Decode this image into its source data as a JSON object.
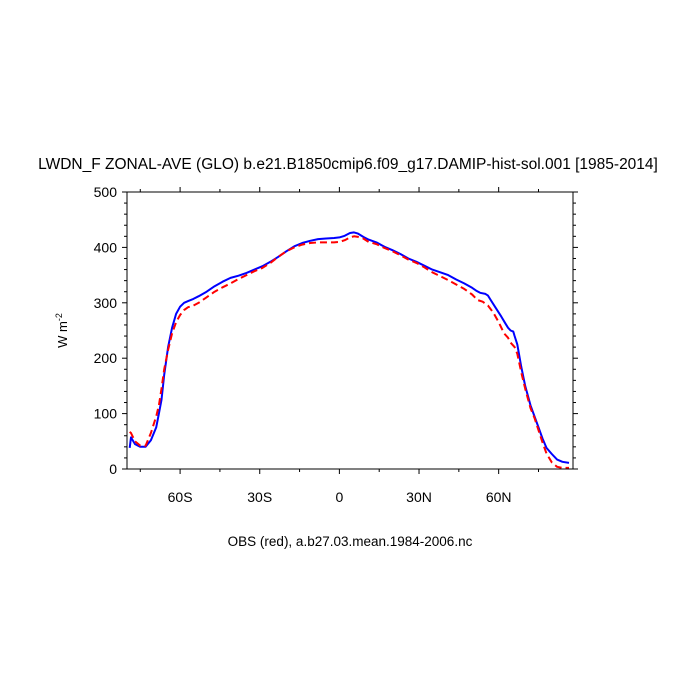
{
  "chart_data": {
    "type": "line",
    "title": "LWDN_F ZONAL-AVE (GLO) b.e21.B1850cmip6.f09_g17.DAMIP-hist-sol.001 [1985-2014]",
    "xlabel": "OBS (red), a.b27.03.mean.1984-2006.nc",
    "ylabel": "W m",
    "ylabel_sup": "-2",
    "xlim": [
      -80,
      88
    ],
    "ylim": [
      0,
      500
    ],
    "x_ticks": [
      {
        "value": -60,
        "label": "60S"
      },
      {
        "value": -30,
        "label": "30S"
      },
      {
        "value": 0,
        "label": "0"
      },
      {
        "value": 30,
        "label": "30N"
      },
      {
        "value": 60,
        "label": "60N"
      }
    ],
    "y_ticks": [
      {
        "value": 0,
        "label": "0"
      },
      {
        "value": 100,
        "label": "100"
      },
      {
        "value": 200,
        "label": "200"
      },
      {
        "value": 300,
        "label": "300"
      },
      {
        "value": 400,
        "label": "400"
      },
      {
        "value": 500,
        "label": "500"
      }
    ],
    "grid": false,
    "series": [
      {
        "color": "#0000ff",
        "dash": "solid",
        "points": [
          [
            -79,
            38
          ],
          [
            -78.5,
            57
          ],
          [
            -77,
            45
          ],
          [
            -75,
            40
          ],
          [
            -73,
            40
          ],
          [
            -71,
            52
          ],
          [
            -69,
            75
          ],
          [
            -68,
            100
          ],
          [
            -67,
            125
          ],
          [
            -66,
            170
          ],
          [
            -64.5,
            220
          ],
          [
            -63,
            255
          ],
          [
            -61.5,
            280
          ],
          [
            -60,
            293
          ],
          [
            -58.5,
            300
          ],
          [
            -57,
            303
          ],
          [
            -55,
            307
          ],
          [
            -53,
            312
          ],
          [
            -50,
            320
          ],
          [
            -47,
            330
          ],
          [
            -44,
            338
          ],
          [
            -41,
            345
          ],
          [
            -38,
            349
          ],
          [
            -35,
            354
          ],
          [
            -32,
            360
          ],
          [
            -29,
            366
          ],
          [
            -26,
            374
          ],
          [
            -23,
            383
          ],
          [
            -20,
            393
          ],
          [
            -17,
            402
          ],
          [
            -14,
            408
          ],
          [
            -11,
            412
          ],
          [
            -8,
            415
          ],
          [
            -5,
            416
          ],
          [
            -2,
            417
          ],
          [
            0,
            418
          ],
          [
            2,
            421
          ],
          [
            4,
            426
          ],
          [
            5.5,
            427
          ],
          [
            7,
            425
          ],
          [
            9,
            419
          ],
          [
            11,
            414
          ],
          [
            14,
            409
          ],
          [
            17,
            401
          ],
          [
            20,
            395
          ],
          [
            23,
            388
          ],
          [
            26,
            380
          ],
          [
            29,
            374
          ],
          [
            32,
            367
          ],
          [
            35,
            360
          ],
          [
            38,
            355
          ],
          [
            41,
            350
          ],
          [
            44,
            342
          ],
          [
            47,
            335
          ],
          [
            50,
            327
          ],
          [
            51.5,
            322
          ],
          [
            53,
            318
          ],
          [
            55,
            316
          ],
          [
            56,
            313
          ],
          [
            57,
            305
          ],
          [
            59,
            290
          ],
          [
            61,
            275
          ],
          [
            62.5,
            263
          ],
          [
            63.5,
            255
          ],
          [
            64.5,
            250
          ],
          [
            65.5,
            248
          ],
          [
            66,
            240
          ],
          [
            67,
            225
          ],
          [
            68.5,
            185
          ],
          [
            70,
            150
          ],
          [
            72,
            115
          ],
          [
            73.5,
            95
          ],
          [
            75,
            75
          ],
          [
            76.5,
            55
          ],
          [
            78,
            38
          ],
          [
            80,
            27
          ],
          [
            82,
            17
          ],
          [
            84,
            13
          ],
          [
            86.5,
            11
          ]
        ]
      },
      {
        "color": "#ff0000",
        "dash": "dashed",
        "points": [
          [
            -79,
            67
          ],
          [
            -78.5,
            65
          ],
          [
            -77,
            50
          ],
          [
            -75,
            42
          ],
          [
            -73,
            42
          ],
          [
            -71,
            65
          ],
          [
            -69,
            95
          ],
          [
            -68,
            115
          ],
          [
            -67,
            145
          ],
          [
            -66,
            180
          ],
          [
            -64.5,
            215
          ],
          [
            -63,
            245
          ],
          [
            -61.5,
            265
          ],
          [
            -60,
            278
          ],
          [
            -58.5,
            287
          ],
          [
            -57,
            292
          ],
          [
            -55,
            295
          ],
          [
            -53,
            300
          ],
          [
            -50,
            310
          ],
          [
            -47,
            320
          ],
          [
            -44,
            328
          ],
          [
            -41,
            335
          ],
          [
            -38,
            343
          ],
          [
            -35,
            350
          ],
          [
            -32,
            357
          ],
          [
            -29,
            363
          ],
          [
            -26,
            372
          ],
          [
            -23,
            383
          ],
          [
            -20,
            393
          ],
          [
            -17,
            400
          ],
          [
            -14,
            405
          ],
          [
            -11,
            408
          ],
          [
            -8,
            409
          ],
          [
            -5,
            409
          ],
          [
            -2,
            409
          ],
          [
            0,
            410
          ],
          [
            2,
            413
          ],
          [
            4,
            418
          ],
          [
            5.5,
            420
          ],
          [
            7,
            419
          ],
          [
            9,
            416
          ],
          [
            11,
            410
          ],
          [
            14,
            406
          ],
          [
            17,
            399
          ],
          [
            20,
            393
          ],
          [
            23,
            386
          ],
          [
            26,
            378
          ],
          [
            29,
            372
          ],
          [
            32,
            364
          ],
          [
            35,
            355
          ],
          [
            38,
            348
          ],
          [
            41,
            341
          ],
          [
            44,
            333
          ],
          [
            47,
            325
          ],
          [
            50,
            315
          ],
          [
            52,
            305
          ],
          [
            54,
            302
          ],
          [
            56,
            295
          ],
          [
            58,
            282
          ],
          [
            60,
            265
          ],
          [
            62,
            245
          ],
          [
            63.5,
            237
          ],
          [
            64.5,
            228
          ],
          [
            66,
            220
          ],
          [
            67,
            208
          ],
          [
            68.5,
            175
          ],
          [
            70,
            145
          ],
          [
            72,
            110
          ],
          [
            73.5,
            92
          ],
          [
            75,
            70
          ],
          [
            76.5,
            48
          ],
          [
            78,
            28
          ],
          [
            80,
            12
          ],
          [
            82,
            4
          ],
          [
            84,
            2
          ],
          [
            86.5,
            2
          ]
        ]
      }
    ]
  }
}
